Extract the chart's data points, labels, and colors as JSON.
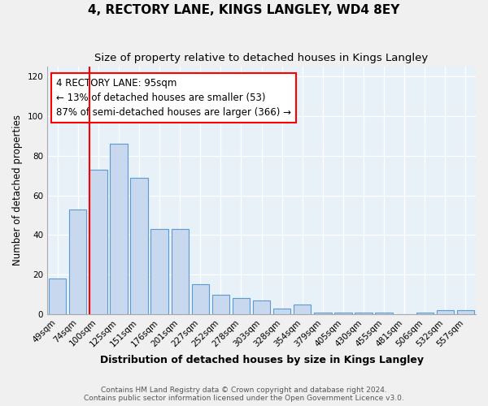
{
  "title": "4, RECTORY LANE, KINGS LANGLEY, WD4 8EY",
  "subtitle": "Size of property relative to detached houses in Kings Langley",
  "xlabel": "Distribution of detached houses by size in Kings Langley",
  "ylabel": "Number of detached properties",
  "footnote1": "Contains HM Land Registry data © Crown copyright and database right 2024.",
  "footnote2": "Contains public sector information licensed under the Open Government Licence v3.0.",
  "bar_labels": [
    "49sqm",
    "74sqm",
    "100sqm",
    "125sqm",
    "151sqm",
    "176sqm",
    "201sqm",
    "227sqm",
    "252sqm",
    "278sqm",
    "303sqm",
    "328sqm",
    "354sqm",
    "379sqm",
    "405sqm",
    "430sqm",
    "455sqm",
    "481sqm",
    "506sqm",
    "532sqm",
    "557sqm"
  ],
  "bar_values": [
    18,
    53,
    73,
    86,
    69,
    43,
    43,
    15,
    10,
    8,
    7,
    3,
    5,
    1,
    1,
    1,
    1,
    0,
    1,
    2,
    2
  ],
  "bar_color": "#c8d8ee",
  "bar_edge_color": "#5b9bd5",
  "red_line_index": 2,
  "annotation_text": "4 RECTORY LANE: 95sqm\n← 13% of detached houses are smaller (53)\n87% of semi-detached houses are larger (366) →",
  "annotation_box_color": "white",
  "annotation_box_edge_color": "red",
  "red_line_color": "red",
  "ylim": [
    0,
    125
  ],
  "yticks": [
    0,
    20,
    40,
    60,
    80,
    100,
    120
  ],
  "plot_bg_color": "#e8f0f8",
  "fig_bg_color": "#f0f0f0",
  "grid_color": "white",
  "title_fontsize": 11,
  "subtitle_fontsize": 9.5,
  "xlabel_fontsize": 9,
  "ylabel_fontsize": 8.5,
  "tick_fontsize": 7.5,
  "annotation_fontsize": 8.5,
  "footnote_fontsize": 6.5
}
